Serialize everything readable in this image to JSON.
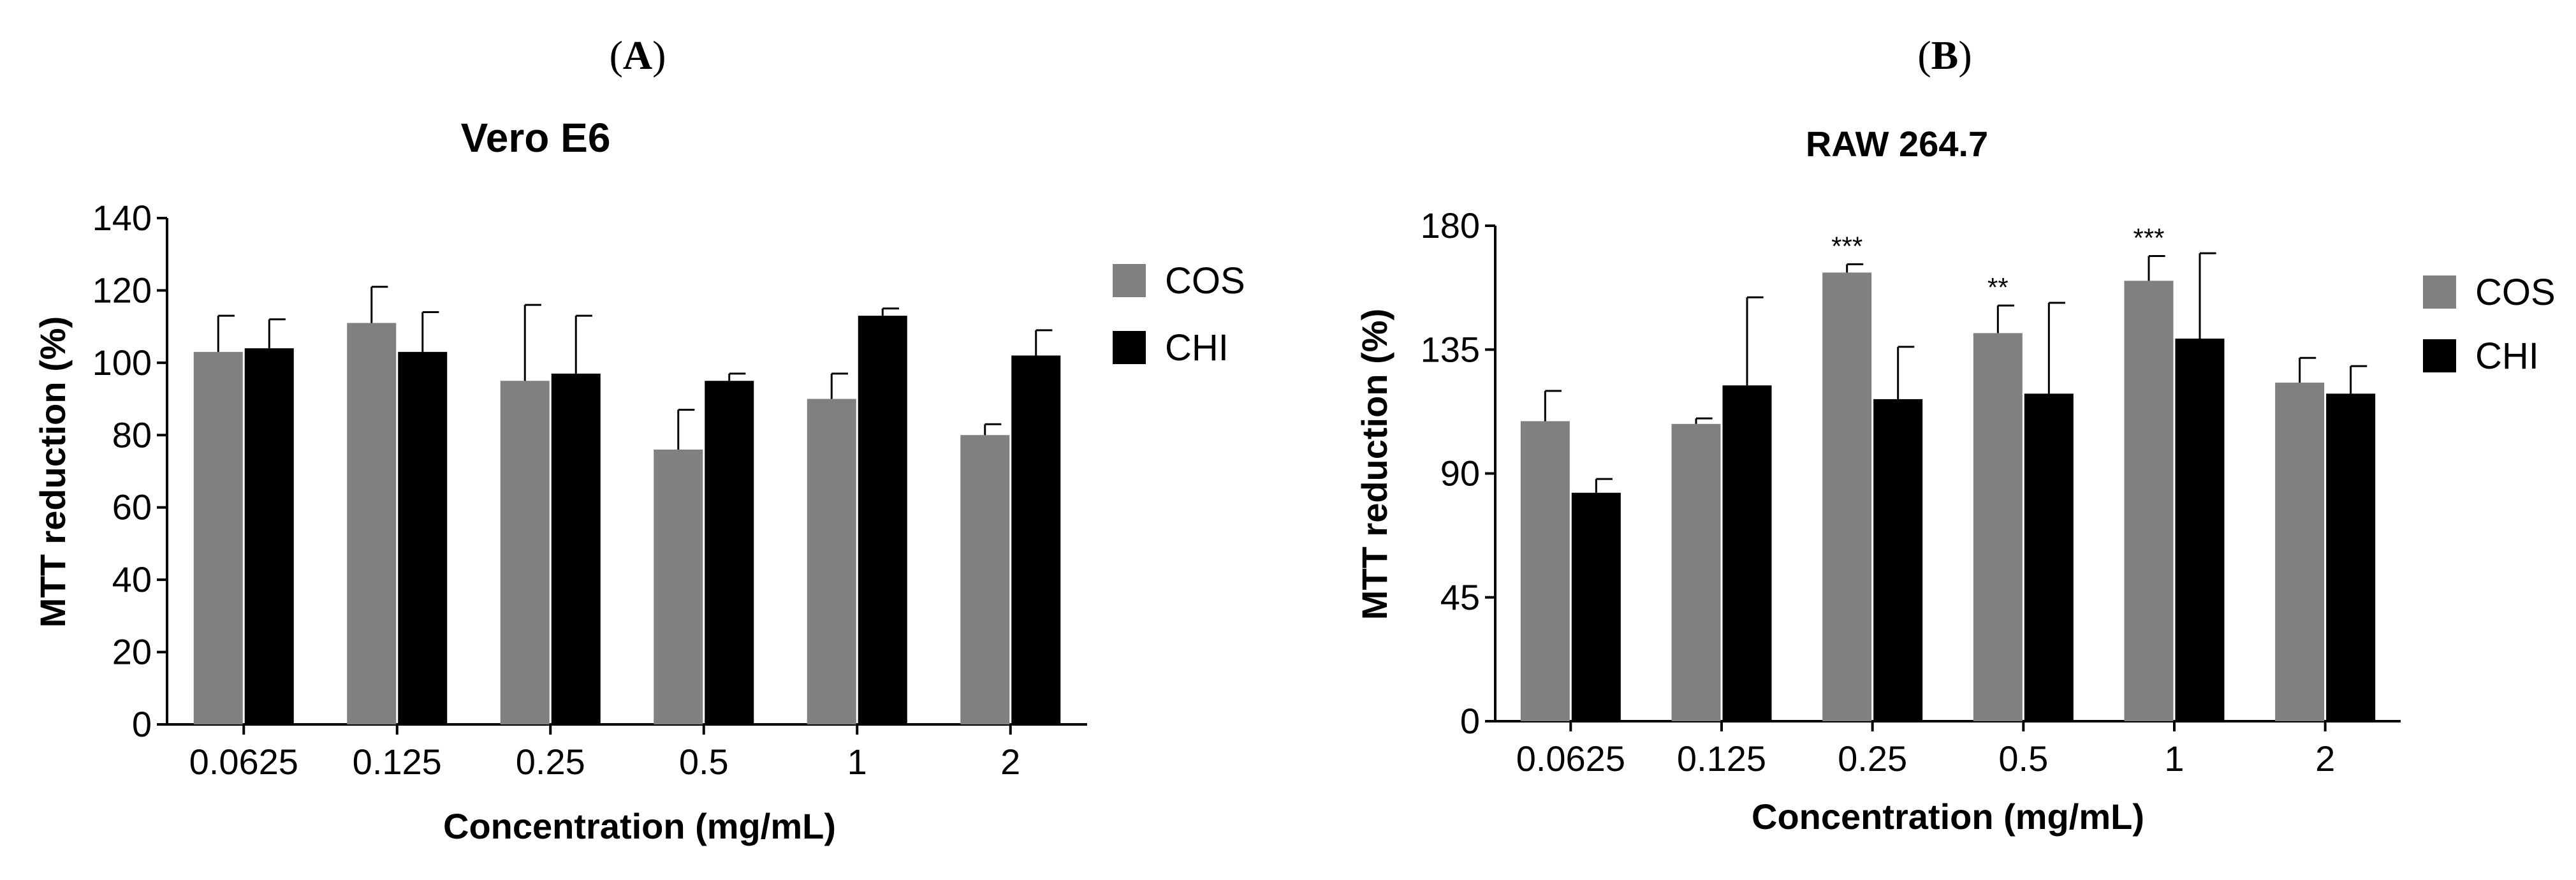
{
  "figure": {
    "panels": [
      "A",
      "B"
    ]
  },
  "chart_data": [
    {
      "type": "bar",
      "panel": "A",
      "title": "Vero E6",
      "xlabel": "Concentration (mg/mL)",
      "ylabel": "MTT reduction (%)",
      "categories": [
        "0.0625",
        "0.125",
        "0.25",
        "0.5",
        "1",
        "2"
      ],
      "ylim": [
        0,
        140
      ],
      "yticks": [
        0,
        20,
        40,
        60,
        80,
        100,
        120,
        140
      ],
      "legend_position": "right",
      "grid": false,
      "series": [
        {
          "name": "COS",
          "color": "#808080",
          "values": [
            103,
            111,
            95,
            76,
            90,
            80
          ],
          "errors": [
            10,
            10,
            21,
            11,
            7,
            3
          ]
        },
        {
          "name": "CHI",
          "color": "#000000",
          "values": [
            104,
            103,
            97,
            95,
            113,
            102
          ],
          "errors": [
            8,
            11,
            16,
            2,
            2,
            7
          ]
        }
      ],
      "annotations": []
    },
    {
      "type": "bar",
      "panel": "B",
      "title": "RAW 264.7",
      "xlabel": "Concentration (mg/mL)",
      "ylabel": "MTT reduction (%)",
      "categories": [
        "0.0625",
        "0.125",
        "0.25",
        "0.5",
        "1",
        "2"
      ],
      "ylim": [
        0,
        180
      ],
      "yticks": [
        0,
        45,
        90,
        135,
        180
      ],
      "legend_position": "right",
      "grid": false,
      "series": [
        {
          "name": "COS",
          "color": "#808080",
          "values": [
            109,
            108,
            163,
            141,
            160,
            123
          ],
          "errors": [
            11,
            2,
            3,
            10,
            9,
            9
          ]
        },
        {
          "name": "CHI",
          "color": "#000000",
          "values": [
            83,
            122,
            117,
            119,
            139,
            119
          ],
          "errors": [
            5,
            32,
            19,
            33,
            31,
            10
          ]
        }
      ],
      "annotations": [
        {
          "category_index": 2,
          "series": 0,
          "text": "***"
        },
        {
          "category_index": 3,
          "series": 0,
          "text": "**"
        },
        {
          "category_index": 4,
          "series": 0,
          "text": "***"
        }
      ]
    }
  ]
}
